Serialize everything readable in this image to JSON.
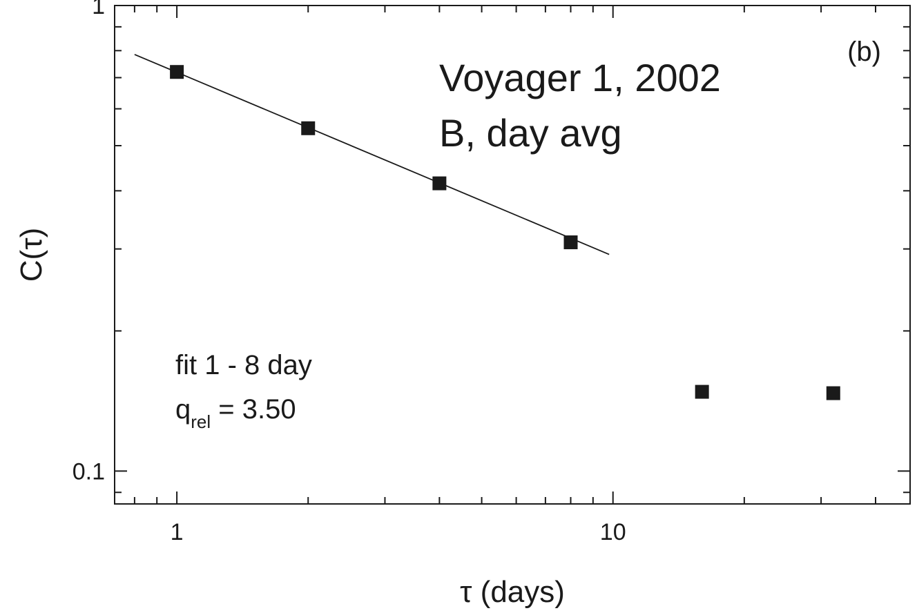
{
  "chart_data": {
    "type": "scatter",
    "xscale": "log",
    "yscale": "log",
    "xlim": [
      0.72,
      48
    ],
    "ylim": [
      0.085,
      1.0
    ],
    "xlabel": "τ (days)",
    "ylabel": "C(τ)",
    "x_ticks": [
      {
        "value": 1,
        "label": "1"
      },
      {
        "value": 10,
        "label": "10"
      }
    ],
    "y_ticks": [
      {
        "value": 0.1,
        "label": "0.1"
      },
      {
        "value": 1,
        "label": "1"
      }
    ],
    "series": [
      {
        "points": [
          {
            "x": 1,
            "y": 0.72
          },
          {
            "x": 2,
            "y": 0.545
          },
          {
            "x": 4,
            "y": 0.415
          },
          {
            "x": 8,
            "y": 0.31
          },
          {
            "x": 16,
            "y": 0.148
          },
          {
            "x": 32,
            "y": 0.147
          }
        ]
      }
    ],
    "fit_line": {
      "x": [
        0.8,
        9.8
      ],
      "y": [
        0.785,
        0.292
      ]
    },
    "panel_label": "(b)",
    "annotation_title": [
      "Voyager 1, 2002",
      "B, day avg"
    ],
    "annotation_fit": {
      "line1": "fit 1 - 8 day",
      "q_symbol": "q",
      "q_subscript": "rel",
      "q_value": " = 3.50"
    },
    "grid": false,
    "legend": "none"
  }
}
